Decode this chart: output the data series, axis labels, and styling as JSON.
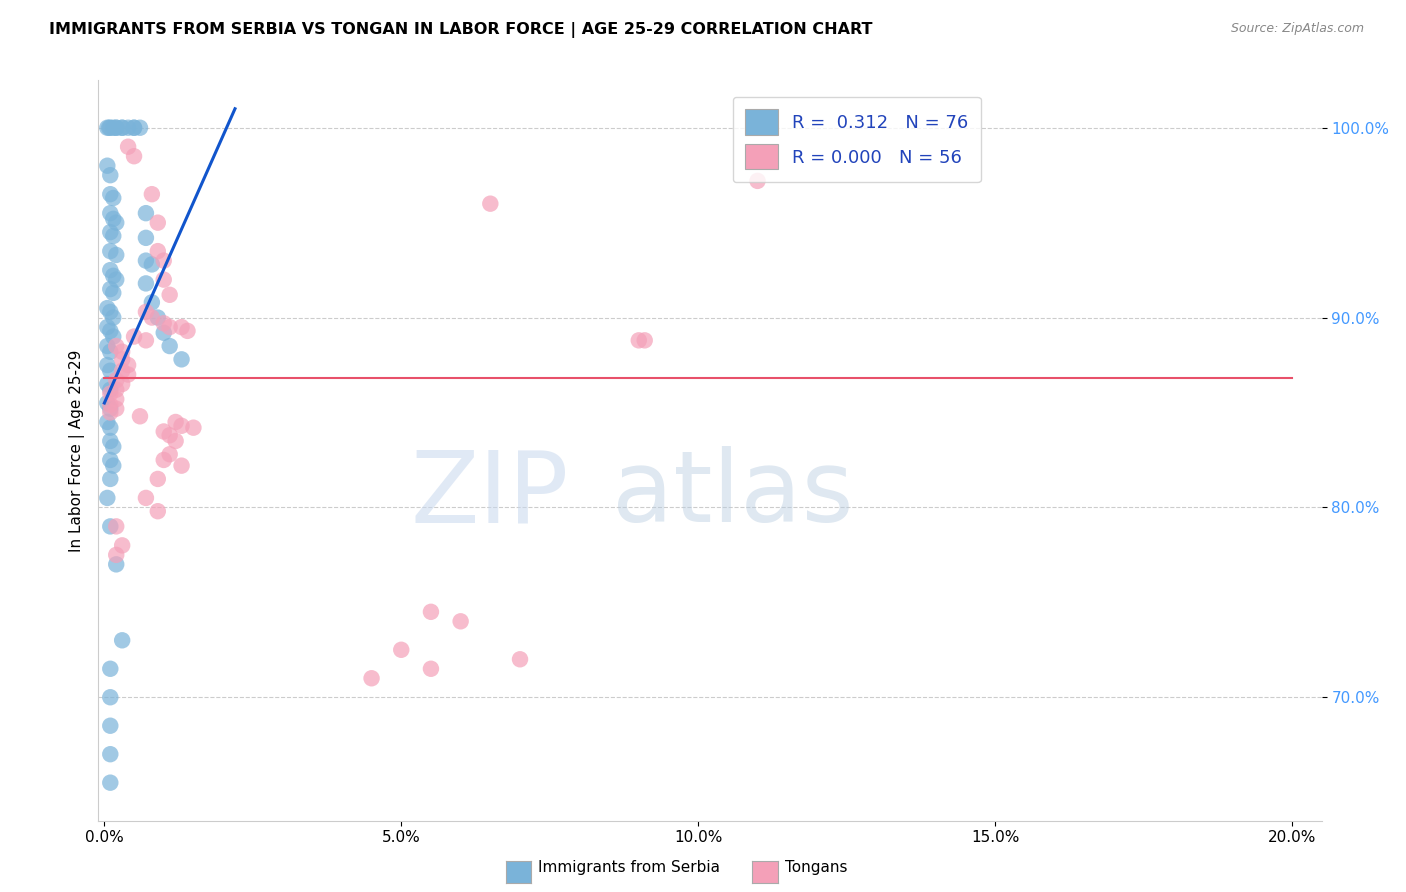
{
  "title": "IMMIGRANTS FROM SERBIA VS TONGAN IN LABOR FORCE | AGE 25-29 CORRELATION CHART",
  "source": "Source: ZipAtlas.com",
  "ylabel": "In Labor Force | Age 25-29",
  "x_ticks": [
    "0.0%",
    "5.0%",
    "10.0%",
    "15.0%",
    "20.0%"
  ],
  "x_tick_vals": [
    0.0,
    0.05,
    0.1,
    0.15,
    0.2
  ],
  "y_ticks_right": [
    "100.0%",
    "90.0%",
    "80.0%",
    "70.0%"
  ],
  "y_tick_vals": [
    1.0,
    0.9,
    0.8,
    0.7
  ],
  "xlim": [
    -0.001,
    0.205
  ],
  "ylim": [
    0.635,
    1.025
  ],
  "serbia_color": "#7ab3d9",
  "tongan_color": "#f4a0b8",
  "serbia_trend_color": "#1155cc",
  "tongan_trend_color": "#e8506a",
  "watermark_zip": "ZIP",
  "watermark_atlas": "atlas",
  "serbia_points": [
    [
      0.0005,
      1.0
    ],
    [
      0.0008,
      1.0
    ],
    [
      0.001,
      1.0
    ],
    [
      0.0015,
      1.0
    ],
    [
      0.002,
      1.0
    ],
    [
      0.002,
      1.0
    ],
    [
      0.003,
      1.0
    ],
    [
      0.003,
      1.0
    ],
    [
      0.004,
      1.0
    ],
    [
      0.005,
      1.0
    ],
    [
      0.005,
      1.0
    ],
    [
      0.006,
      1.0
    ],
    [
      0.0005,
      0.98
    ],
    [
      0.001,
      0.975
    ],
    [
      0.001,
      0.965
    ],
    [
      0.0015,
      0.963
    ],
    [
      0.001,
      0.955
    ],
    [
      0.0015,
      0.952
    ],
    [
      0.002,
      0.95
    ],
    [
      0.001,
      0.945
    ],
    [
      0.0015,
      0.943
    ],
    [
      0.001,
      0.935
    ],
    [
      0.002,
      0.933
    ],
    [
      0.001,
      0.925
    ],
    [
      0.0015,
      0.922
    ],
    [
      0.002,
      0.92
    ],
    [
      0.001,
      0.915
    ],
    [
      0.0015,
      0.913
    ],
    [
      0.0005,
      0.905
    ],
    [
      0.001,
      0.903
    ],
    [
      0.0015,
      0.9
    ],
    [
      0.0005,
      0.895
    ],
    [
      0.001,
      0.893
    ],
    [
      0.0015,
      0.89
    ],
    [
      0.0005,
      0.885
    ],
    [
      0.001,
      0.882
    ],
    [
      0.0005,
      0.875
    ],
    [
      0.001,
      0.872
    ],
    [
      0.0005,
      0.865
    ],
    [
      0.001,
      0.862
    ],
    [
      0.0005,
      0.855
    ],
    [
      0.001,
      0.852
    ],
    [
      0.0005,
      0.845
    ],
    [
      0.001,
      0.842
    ],
    [
      0.001,
      0.835
    ],
    [
      0.0015,
      0.832
    ],
    [
      0.001,
      0.825
    ],
    [
      0.0015,
      0.822
    ],
    [
      0.001,
      0.815
    ],
    [
      0.0005,
      0.805
    ],
    [
      0.007,
      0.955
    ],
    [
      0.007,
      0.942
    ],
    [
      0.007,
      0.93
    ],
    [
      0.008,
      0.928
    ],
    [
      0.007,
      0.918
    ],
    [
      0.008,
      0.908
    ],
    [
      0.009,
      0.9
    ],
    [
      0.01,
      0.892
    ],
    [
      0.011,
      0.885
    ],
    [
      0.013,
      0.878
    ],
    [
      0.001,
      0.79
    ],
    [
      0.002,
      0.77
    ],
    [
      0.003,
      0.73
    ],
    [
      0.001,
      0.715
    ],
    [
      0.001,
      0.7
    ],
    [
      0.001,
      0.685
    ],
    [
      0.001,
      0.67
    ],
    [
      0.001,
      0.655
    ]
  ],
  "tongan_points": [
    [
      0.004,
      0.99
    ],
    [
      0.005,
      0.985
    ],
    [
      0.008,
      0.965
    ],
    [
      0.009,
      0.95
    ],
    [
      0.009,
      0.935
    ],
    [
      0.01,
      0.93
    ],
    [
      0.01,
      0.92
    ],
    [
      0.011,
      0.912
    ],
    [
      0.007,
      0.903
    ],
    [
      0.008,
      0.9
    ],
    [
      0.01,
      0.897
    ],
    [
      0.011,
      0.895
    ],
    [
      0.005,
      0.89
    ],
    [
      0.007,
      0.888
    ],
    [
      0.002,
      0.885
    ],
    [
      0.003,
      0.882
    ],
    [
      0.003,
      0.878
    ],
    [
      0.004,
      0.875
    ],
    [
      0.003,
      0.872
    ],
    [
      0.004,
      0.87
    ],
    [
      0.002,
      0.867
    ],
    [
      0.003,
      0.865
    ],
    [
      0.002,
      0.862
    ],
    [
      0.001,
      0.86
    ],
    [
      0.002,
      0.857
    ],
    [
      0.001,
      0.854
    ],
    [
      0.002,
      0.852
    ],
    [
      0.001,
      0.85
    ],
    [
      0.013,
      0.895
    ],
    [
      0.014,
      0.893
    ],
    [
      0.006,
      0.848
    ],
    [
      0.012,
      0.845
    ],
    [
      0.013,
      0.843
    ],
    [
      0.01,
      0.84
    ],
    [
      0.011,
      0.838
    ],
    [
      0.012,
      0.835
    ],
    [
      0.015,
      0.842
    ],
    [
      0.011,
      0.828
    ],
    [
      0.01,
      0.825
    ],
    [
      0.013,
      0.822
    ],
    [
      0.009,
      0.815
    ],
    [
      0.007,
      0.805
    ],
    [
      0.009,
      0.798
    ],
    [
      0.002,
      0.79
    ],
    [
      0.003,
      0.78
    ],
    [
      0.002,
      0.775
    ],
    [
      0.11,
      0.972
    ],
    [
      0.065,
      0.96
    ],
    [
      0.09,
      0.888
    ],
    [
      0.091,
      0.888
    ],
    [
      0.055,
      0.745
    ],
    [
      0.06,
      0.74
    ],
    [
      0.05,
      0.725
    ],
    [
      0.07,
      0.72
    ],
    [
      0.055,
      0.715
    ],
    [
      0.045,
      0.71
    ]
  ],
  "serbia_trend_x": [
    0.0,
    0.022
  ],
  "serbia_trend_y": [
    0.855,
    1.01
  ],
  "tongan_trend_y": 0.868
}
